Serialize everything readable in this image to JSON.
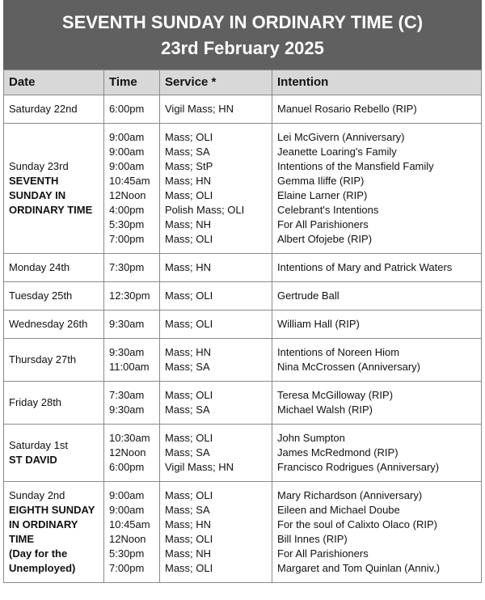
{
  "header": {
    "title": "SEVENTH SUNDAY IN ORDINARY TIME (C)",
    "date": "23rd February 2025"
  },
  "table": {
    "columns": [
      "Date",
      "Time",
      "Service *",
      "Intention"
    ],
    "rows": [
      {
        "day": "Saturday 22nd",
        "entries": [
          [
            "6:00pm",
            "Vigil Mass; HN",
            "Manuel Rosario Rebello (RIP)"
          ]
        ]
      },
      {
        "day": "Sunday 23rd",
        "feast": "SEVENTH SUNDAY IN ORDINARY TIME",
        "entries": [
          [
            "9:00am",
            "Mass; OLI",
            "Lei McGivern (Anniversary)"
          ],
          [
            "9:00am",
            "Mass; SA",
            "Jeanette Loaring's Family"
          ],
          [
            "9:00am",
            "Mass; StP",
            "Intentions of the Mansfield Family"
          ],
          [
            "10:45am",
            "Mass; HN",
            "Gemma Iliffe (RIP)"
          ],
          [
            "12Noon",
            "Mass; OLI",
            "Elaine Larner (RIP)"
          ],
          [
            "4:00pm",
            "Polish Mass; OLI",
            "Celebrant's Intentions"
          ],
          [
            "5:30pm",
            "Mass; NH",
            "For All Parishioners"
          ],
          [
            "7:00pm",
            "Mass; OLI",
            "Albert Ofojebe (RIP)"
          ]
        ]
      },
      {
        "day": "Monday 24th",
        "entries": [
          [
            "7:30pm",
            "Mass; HN",
            "Intentions of Mary and Patrick Waters"
          ]
        ]
      },
      {
        "day": "Tuesday 25th",
        "entries": [
          [
            "12:30pm",
            "Mass; OLI",
            "Gertrude Ball"
          ]
        ]
      },
      {
        "day": "Wednesday 26th",
        "entries": [
          [
            "9:30am",
            "Mass; OLI",
            "William Hall (RIP)"
          ]
        ]
      },
      {
        "day": "Thursday 27th",
        "entries": [
          [
            "9:30am",
            "Mass; HN",
            "Intentions of Noreen Hiom"
          ],
          [
            "11:00am",
            "Mass; SA",
            "Nina McCrossen (Anniversary)"
          ]
        ]
      },
      {
        "day": "Friday 28th",
        "entries": [
          [
            "7:30am",
            "Mass; OLI",
            "Teresa McGilloway (RIP)"
          ],
          [
            "9:30am",
            "Mass; SA",
            "Michael Walsh (RIP)"
          ]
        ]
      },
      {
        "day": "Saturday 1st",
        "feast": "ST DAVID",
        "entries": [
          [
            "10:30am",
            "Mass; OLI",
            "John Sumpton"
          ],
          [
            "12Noon",
            "Mass; SA",
            "James McRedmond (RIP)"
          ],
          [
            "6:00pm",
            "Vigil Mass; HN",
            "Francisco Rodrigues (Anniversary)"
          ]
        ]
      },
      {
        "day": "Sunday 2nd",
        "feast": "EIGHTH SUNDAY IN ORDINARY TIME",
        "note": "(Day for the Unemployed)",
        "entries": [
          [
            "9:00am",
            "Mass; OLI",
            "Mary Richardson (Anniversary)"
          ],
          [
            "9:00am",
            "Mass; SA",
            "Eileen and Michael Doube"
          ],
          [
            "10:45am",
            "Mass; HN",
            "For the soul of Calixto Olaco (RIP)"
          ],
          [
            "12Noon",
            "Mass; OLI",
            "Bill Innes (RIP)"
          ],
          [
            "5:30pm",
            "Mass; NH",
            "For All Parishioners"
          ],
          [
            "7:00pm",
            "Mass; OLI",
            "Margaret and Tom Quinlan (Anniv.)"
          ]
        ]
      }
    ]
  }
}
